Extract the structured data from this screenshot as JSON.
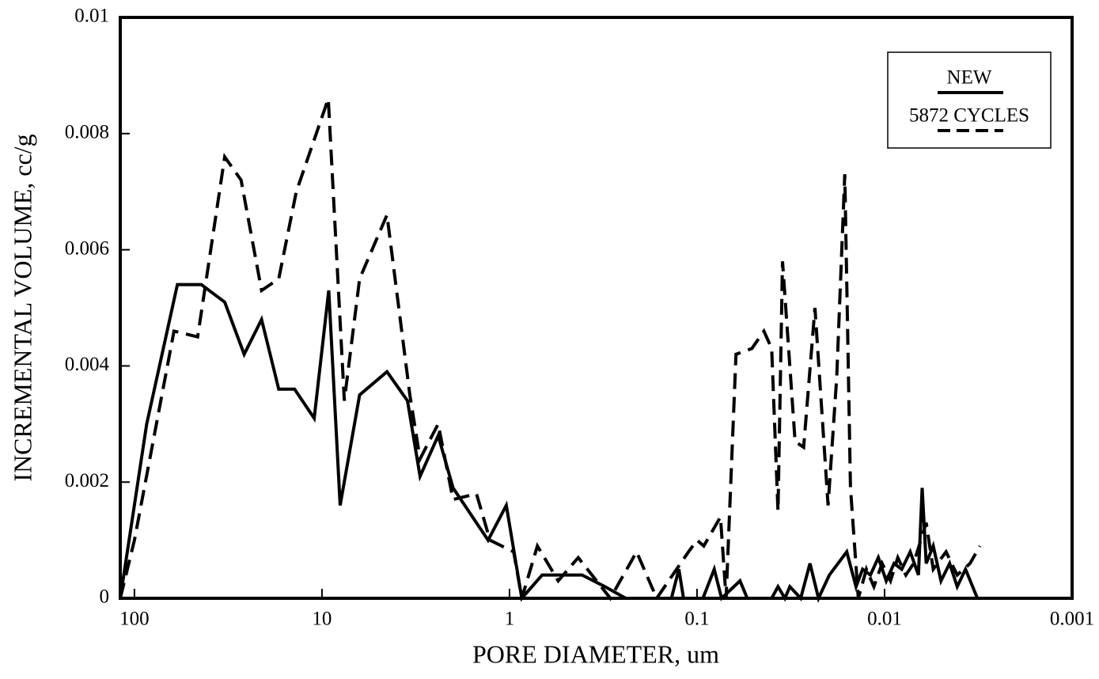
{
  "chart_data": {
    "type": "line",
    "xlabel": "PORE DIAMETER, um",
    "ylabel": "INCREMENTAL VOLUME, cc/g",
    "xscale": "log",
    "xlim": [
      119,
      0.001
    ],
    "xticks": [
      100,
      10,
      1,
      0.1,
      0.01,
      0.001
    ],
    "ylim": [
      0,
      0.01
    ],
    "yticks": [
      0,
      0.002,
      0.004,
      0.006,
      0.008,
      0.01
    ],
    "legend": "upper right",
    "series": [
      {
        "name": "NEW",
        "color": "#000000",
        "dash": false,
        "x": [
          119,
          86,
          59,
          44,
          33,
          26,
          21,
          17,
          14,
          11,
          9.2,
          8.0,
          6.3,
          4.5,
          3.5,
          3.0,
          2.4,
          2.0,
          1.3,
          1.04,
          0.86,
          0.67,
          0.55,
          0.41,
          0.31,
          0.24,
          0.18,
          0.137,
          0.125,
          0.118,
          0.093,
          0.081,
          0.074,
          0.059,
          0.054,
          0.04,
          0.037,
          0.034,
          0.032,
          0.028,
          0.025,
          0.0225,
          0.0197,
          0.0159,
          0.0142,
          0.0131,
          0.0119,
          0.0108,
          0.0098,
          0.0089,
          0.0081,
          0.0073,
          0.0066,
          0.0063,
          0.006,
          0.0055,
          0.005,
          0.0045,
          0.0041,
          0.0037,
          0.0032
        ],
        "values": [
          0,
          0.003,
          0.0054,
          0.0054,
          0.0051,
          0.0042,
          0.0048,
          0.0036,
          0.0036,
          0.0031,
          0.0053,
          0.0016,
          0.0035,
          0.0039,
          0.0034,
          0.0021,
          0.0028,
          0.0019,
          0.001,
          0.0016,
          0,
          0.0004,
          0.0004,
          0.0004,
          0.0002,
          0,
          0,
          0,
          0.0005,
          0,
          0,
          0.0005,
          0,
          0.0003,
          0,
          0,
          0.0002,
          0,
          0.0002,
          0,
          0.0006,
          0,
          0.0004,
          0.0008,
          0.0002,
          0.0005,
          0.0004,
          0.0007,
          0.0003,
          0.0006,
          0.0005,
          0.0008,
          0.0004,
          0.0019,
          0.0006,
          0.0009,
          0.0003,
          0.0006,
          0.0002,
          0.0005,
          0
        ]
      },
      {
        "name": "5872 CYCLES",
        "color": "#000000",
        "dash": true,
        "x": [
          119,
          100,
          61.5,
          46,
          33,
          27,
          21,
          17,
          13.7,
          9.25,
          7.6,
          6.3,
          4.5,
          3.4,
          3.0,
          2.4,
          2.0,
          1.5,
          1.27,
          0.95,
          0.86,
          0.71,
          0.55,
          0.43,
          0.29,
          0.21,
          0.164,
          0.111,
          0.1,
          0.092,
          0.075,
          0.07,
          0.062,
          0.051,
          0.044,
          0.04,
          0.037,
          0.035,
          0.03,
          0.027,
          0.0235,
          0.02,
          0.018,
          0.0163,
          0.0152,
          0.0138,
          0.0125,
          0.0114,
          0.0103,
          0.0093,
          0.0085,
          0.0077,
          0.007,
          0.006,
          0.0055,
          0.0047,
          0.0041,
          0.0035,
          0.0031
        ],
        "values": [
          0,
          0.001,
          0.0046,
          0.0045,
          0.0076,
          0.0072,
          0.0053,
          0.0055,
          0.007,
          0.0086,
          0.0034,
          0.0055,
          0.0066,
          0.0035,
          0.0024,
          0.003,
          0.0017,
          0.0018,
          0.001,
          0.0008,
          0,
          0.0009,
          0.0003,
          0.0007,
          0,
          0.0008,
          0,
          0.0008,
          0.001,
          0.0009,
          0.0014,
          0,
          0.0042,
          0.0043,
          0.0046,
          0.0043,
          0.0015,
          0.0058,
          0.0027,
          0.0026,
          0.005,
          0.0016,
          0.0038,
          0.0073,
          0.0019,
          0,
          0.0005,
          0.0002,
          0.0006,
          0.0003,
          0.0007,
          0.0004,
          0.0006,
          0.0013,
          0.0005,
          0.0008,
          0.0004,
          0.0006,
          0.0009
        ]
      }
    ]
  }
}
